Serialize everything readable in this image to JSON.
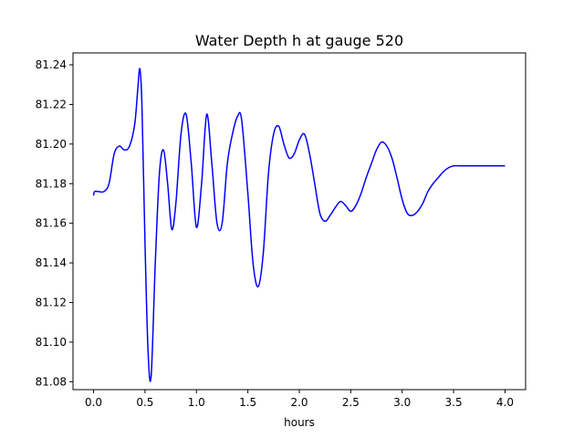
{
  "chart_data": {
    "type": "line",
    "title": "Water Depth h at gauge 520",
    "xlabel": "hours",
    "ylabel": "",
    "xlim": [
      -0.2,
      4.2
    ],
    "ylim": [
      81.076,
      81.246
    ],
    "xticks": [
      0.0,
      0.5,
      1.0,
      1.5,
      2.0,
      2.5,
      3.0,
      3.5,
      4.0
    ],
    "xtick_labels": [
      "0.0",
      "0.5",
      "1.0",
      "1.5",
      "2.0",
      "2.5",
      "3.0",
      "3.5",
      "4.0"
    ],
    "yticks": [
      81.08,
      81.1,
      81.12,
      81.14,
      81.16,
      81.18,
      81.2,
      81.22,
      81.24
    ],
    "ytick_labels": [
      "81.08",
      "81.10",
      "81.12",
      "81.14",
      "81.16",
      "81.18",
      "81.20",
      "81.22",
      "81.24"
    ],
    "grid": false,
    "series": [
      {
        "color": "#0000ff",
        "x": [
          0.0,
          0.01,
          0.05,
          0.1,
          0.15,
          0.2,
          0.25,
          0.3,
          0.35,
          0.4,
          0.43,
          0.45,
          0.47,
          0.5,
          0.53,
          0.56,
          0.6,
          0.64,
          0.68,
          0.72,
          0.76,
          0.8,
          0.85,
          0.9,
          0.95,
          1.0,
          1.05,
          1.1,
          1.15,
          1.2,
          1.25,
          1.3,
          1.35,
          1.4,
          1.44,
          1.5,
          1.55,
          1.6,
          1.65,
          1.7,
          1.75,
          1.8,
          1.85,
          1.9,
          1.95,
          2.0,
          2.05,
          2.1,
          2.15,
          2.2,
          2.25,
          2.3,
          2.35,
          2.4,
          2.45,
          2.5,
          2.55,
          2.6,
          2.65,
          2.7,
          2.75,
          2.8,
          2.85,
          2.9,
          2.95,
          3.0,
          3.05,
          3.1,
          3.15,
          3.2,
          3.25,
          3.3,
          3.35,
          3.4,
          3.45,
          3.5,
          3.55,
          3.6,
          3.65,
          3.7,
          3.75,
          3.8,
          3.85,
          3.9,
          3.95,
          4.0
        ],
        "y": [
          81.174,
          81.176,
          81.176,
          81.176,
          81.18,
          81.195,
          81.199,
          81.197,
          81.199,
          81.21,
          81.228,
          81.238,
          81.22,
          81.15,
          81.095,
          81.083,
          81.14,
          81.185,
          81.197,
          81.18,
          81.157,
          81.17,
          81.205,
          81.215,
          81.19,
          81.158,
          81.18,
          81.215,
          81.19,
          81.16,
          81.16,
          81.19,
          81.205,
          81.214,
          81.212,
          81.175,
          81.14,
          81.128,
          81.145,
          81.185,
          81.205,
          81.209,
          81.2,
          81.193,
          81.195,
          81.202,
          81.205,
          81.195,
          81.18,
          81.165,
          81.161,
          81.164,
          81.168,
          81.171,
          81.169,
          81.166,
          81.169,
          81.175,
          81.183,
          81.19,
          81.197,
          81.201,
          81.199,
          81.193,
          81.183,
          81.172,
          81.165,
          81.164,
          81.166,
          81.17,
          81.176,
          81.18,
          81.183,
          81.186,
          81.188,
          81.189,
          81.189,
          81.189,
          81.189,
          81.189,
          81.189,
          81.189,
          81.189,
          81.189,
          81.189,
          81.189
        ]
      }
    ]
  }
}
